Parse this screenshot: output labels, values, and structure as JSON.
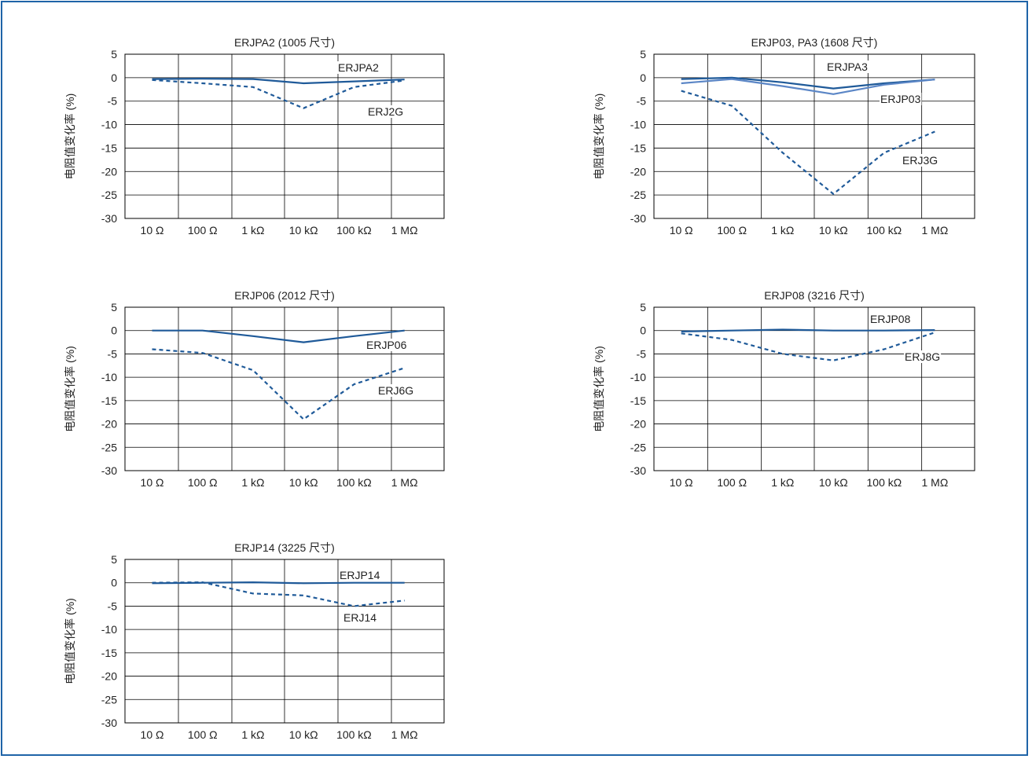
{
  "colors": {
    "frame": "#1f64a8",
    "dark_line": "#1f5a99",
    "light_line": "#5b86c6",
    "dashed_line": "#1f5a99",
    "grid": "#000000"
  },
  "shared": {
    "ylabel": "电阻值变化率 (%)",
    "categories": [
      "10 Ω",
      "100 Ω",
      "1 kΩ",
      "10 kΩ",
      "100 kΩ",
      "1 MΩ"
    ],
    "yticks": [
      "5",
      "0",
      "-5",
      "-10",
      "-15",
      "-20",
      "-25",
      "-30"
    ]
  },
  "chart_data": [
    {
      "type": "line",
      "title": "ERJPA2 (1005 尺寸)",
      "ylabel": "电阻值变化率 (%)",
      "categories": [
        "10 Ω",
        "100 Ω",
        "1 kΩ",
        "10 kΩ",
        "100 kΩ",
        "1 MΩ"
      ],
      "ylim": [
        -30,
        5
      ],
      "grid": true,
      "series": [
        {
          "name": "ERJPA2",
          "style": "solid-dark",
          "points": [
            [
              0,
              -0.3
            ],
            [
              1,
              -0.2
            ],
            [
              2,
              -0.3
            ],
            [
              3,
              -1.2
            ],
            [
              4,
              -0.8
            ],
            [
              5,
              -0.4
            ]
          ]
        },
        {
          "name": "ERJ2G",
          "style": "dashed",
          "points": [
            [
              0,
              -0.5
            ],
            [
              1,
              -1.2
            ],
            [
              2,
              -2.0
            ],
            [
              3,
              -6.5
            ],
            [
              4,
              -2.0
            ],
            [
              5,
              -0.6
            ]
          ]
        }
      ]
    },
    {
      "type": "line",
      "title": "ERJP03, PA3 (1608 尺寸)",
      "ylabel": "电阻值变化率 (%)",
      "categories": [
        "10 Ω",
        "100 Ω",
        "1 kΩ",
        "10 kΩ",
        "100 kΩ",
        "1 MΩ"
      ],
      "ylim": [
        -30,
        5
      ],
      "grid": true,
      "series": [
        {
          "name": "ERJPA3",
          "style": "solid-dark",
          "points": [
            [
              0,
              -0.3
            ],
            [
              1,
              0.0
            ],
            [
              2,
              -1.0
            ],
            [
              3,
              -2.3
            ],
            [
              4,
              -1.2
            ],
            [
              5,
              -0.4
            ]
          ]
        },
        {
          "name": "ERJP03",
          "style": "solid-light",
          "points": [
            [
              0,
              -1.2
            ],
            [
              1,
              -0.3
            ],
            [
              2,
              -1.8
            ],
            [
              3,
              -3.5
            ],
            [
              4,
              -1.5
            ],
            [
              5,
              -0.4
            ]
          ]
        },
        {
          "name": "ERJ3G",
          "style": "dashed",
          "points": [
            [
              0,
              -2.8
            ],
            [
              1,
              -6.0
            ],
            [
              2,
              -16.0
            ],
            [
              3,
              -24.8
            ],
            [
              4,
              -16.0
            ],
            [
              5,
              -11.5
            ]
          ]
        }
      ]
    },
    {
      "type": "line",
      "title": "ERJP06 (2012 尺寸)",
      "ylabel": "电阻值变化率 (%)",
      "categories": [
        "10 Ω",
        "100 Ω",
        "1 kΩ",
        "10 kΩ",
        "100 kΩ",
        "1 MΩ"
      ],
      "ylim": [
        -30,
        5
      ],
      "grid": true,
      "series": [
        {
          "name": "ERJP06",
          "style": "solid-dark",
          "points": [
            [
              0,
              0.0
            ],
            [
              1,
              0.0
            ],
            [
              2,
              -1.2
            ],
            [
              3,
              -2.5
            ],
            [
              4,
              -1.2
            ],
            [
              5,
              0.0
            ]
          ]
        },
        {
          "name": "ERJ6G",
          "style": "dashed",
          "points": [
            [
              0,
              -4.0
            ],
            [
              1,
              -4.8
            ],
            [
              2,
              -8.5
            ],
            [
              3,
              -19.0
            ],
            [
              4,
              -11.5
            ],
            [
              5,
              -8.0
            ]
          ]
        }
      ]
    },
    {
      "type": "line",
      "title": "ERJP08 (3216 尺寸)",
      "ylabel": "电阻值变化率 (%)",
      "categories": [
        "10 Ω",
        "100 Ω",
        "1 kΩ",
        "10 kΩ",
        "100 kΩ",
        "1 MΩ"
      ],
      "ylim": [
        -30,
        5
      ],
      "grid": true,
      "series": [
        {
          "name": "ERJP08",
          "style": "solid-dark",
          "points": [
            [
              0,
              -0.2
            ],
            [
              1,
              0.0
            ],
            [
              2,
              0.2
            ],
            [
              3,
              0.0
            ],
            [
              4,
              0.0
            ],
            [
              5,
              0.1
            ]
          ]
        },
        {
          "name": "ERJ8G",
          "style": "dashed",
          "points": [
            [
              0,
              -0.6
            ],
            [
              1,
              -2.0
            ],
            [
              2,
              -5.0
            ],
            [
              3,
              -6.4
            ],
            [
              4,
              -4.0
            ],
            [
              5,
              -0.4
            ]
          ]
        }
      ]
    },
    {
      "type": "line",
      "title": "ERJP14 (3225 尺寸)",
      "ylabel": "电阻值变化率 (%)",
      "categories": [
        "10 Ω",
        "100 Ω",
        "1 kΩ",
        "10 kΩ",
        "100 kΩ",
        "1 MΩ"
      ],
      "ylim": [
        -30,
        5
      ],
      "grid": true,
      "series": [
        {
          "name": "ERJP14",
          "style": "solid-dark",
          "points": [
            [
              0,
              -0.1
            ],
            [
              1,
              0.0
            ],
            [
              2,
              0.1
            ],
            [
              3,
              -0.1
            ],
            [
              4,
              0.0
            ],
            [
              5,
              0.0
            ]
          ]
        },
        {
          "name": "ERJ14",
          "style": "dashed",
          "points": [
            [
              0,
              0.0
            ],
            [
              1,
              0.1
            ],
            [
              2,
              -2.3
            ],
            [
              3,
              -2.7
            ],
            [
              4,
              -5.0
            ],
            [
              5,
              -3.8
            ]
          ]
        }
      ]
    }
  ]
}
